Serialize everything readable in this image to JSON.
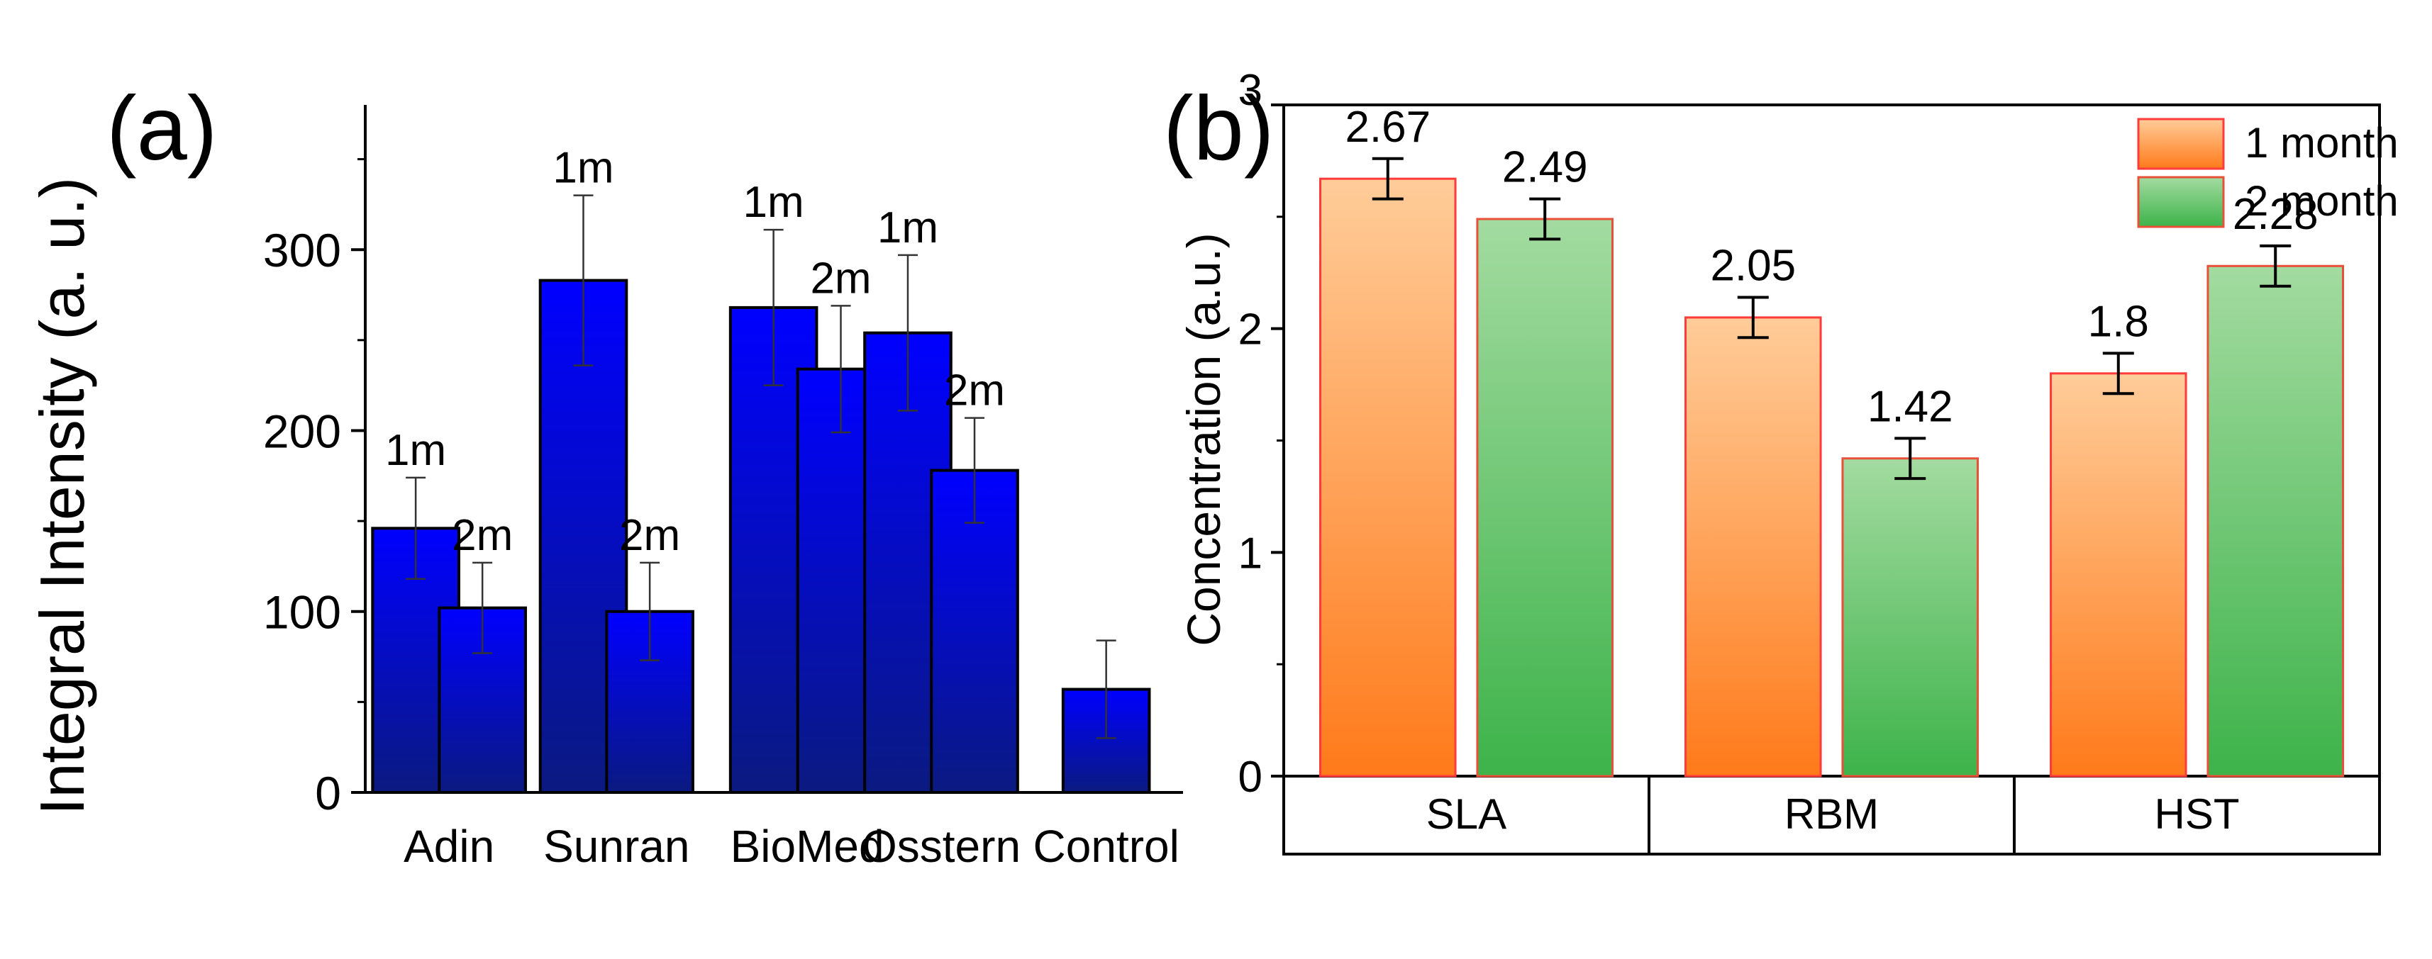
{
  "colors": {
    "blue_top": "#0000ff",
    "blue_bottom": "#0a1a80",
    "orange_top": "#ffcc99",
    "orange_bottom": "#ff7a1a",
    "orange_edge": "#ff3b3b",
    "green_top": "#a3dba0",
    "green_bottom": "#3db34a",
    "green_edge": "#e8503a"
  },
  "chart_data": [
    {
      "id": "a",
      "panel_label": "(a)",
      "type": "bar",
      "title": "",
      "xlabel": "",
      "ylabel": "Integral Intensity (a. u.)",
      "ylim": [
        0,
        380
      ],
      "yticks": [
        "0",
        "100",
        "200",
        "300"
      ],
      "grid": false,
      "categories": [
        "Adin",
        "Sunran",
        "BioMed",
        "Osstern",
        "Control"
      ],
      "bars": [
        {
          "category": "Adin",
          "label": "1m",
          "value": 146,
          "err": 28
        },
        {
          "category": "Adin",
          "label": "2m",
          "value": 102,
          "err": 25
        },
        {
          "category": "Sunran",
          "label": "1m",
          "value": 283,
          "err": 47
        },
        {
          "category": "Sunran",
          "label": "2m",
          "value": 100,
          "err": 27
        },
        {
          "category": "BioMed",
          "label": "1m",
          "value": 268,
          "err": 43
        },
        {
          "category": "BioMed",
          "label": "2m",
          "value": 234,
          "err": 35
        },
        {
          "category": "Osstern",
          "label": "1m",
          "value": 254,
          "err": 43
        },
        {
          "category": "Osstern",
          "label": "2m",
          "value": 178,
          "err": 29
        },
        {
          "category": "Control",
          "label": "",
          "value": 57,
          "err": 27
        }
      ]
    },
    {
      "id": "b",
      "panel_label": "(b)",
      "type": "bar",
      "title": "",
      "xlabel": "",
      "ylabel": "Concentration (a.u.)",
      "ylim": [
        0,
        3
      ],
      "yticks": [
        "0",
        "1",
        "2",
        "3"
      ],
      "grid": false,
      "legend_position": "top-right",
      "categories": [
        "SLA",
        "RBM",
        "HST"
      ],
      "series": [
        {
          "name": "1 month",
          "values": [
            2.67,
            2.05,
            1.8
          ],
          "value_labels": [
            "2.67",
            "2.05",
            "1.8"
          ],
          "errors": [
            0.09,
            0.09,
            0.09
          ]
        },
        {
          "name": "2 month",
          "values": [
            2.49,
            1.42,
            2.28
          ],
          "value_labels": [
            "2.49",
            "1.42",
            "2.28"
          ],
          "errors": [
            0.09,
            0.09,
            0.09
          ]
        }
      ]
    }
  ]
}
